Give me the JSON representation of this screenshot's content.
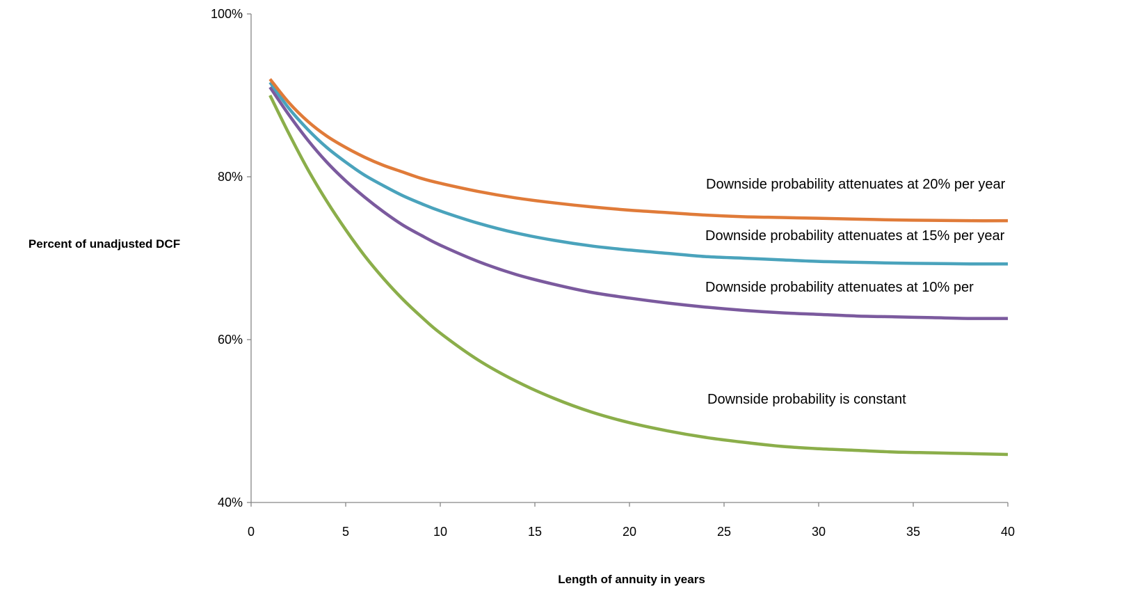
{
  "chart_data": {
    "type": "line",
    "title": "",
    "xlabel": "Length of annuity in years",
    "ylabel": "Percent of unadjusted DCF",
    "xlim": [
      0,
      40
    ],
    "ylim": [
      40,
      100
    ],
    "x_ticks": [
      0,
      5,
      10,
      15,
      20,
      25,
      30,
      35,
      40
    ],
    "x_tick_labels": [
      "0",
      "5",
      "10",
      "15",
      "20",
      "25",
      "30",
      "35",
      "40"
    ],
    "y_ticks": [
      40,
      60,
      80,
      100
    ],
    "y_tick_labels": [
      "40%",
      "60%",
      "80%",
      "100%"
    ],
    "grid": false,
    "legend": "none",
    "x": [
      1,
      2,
      3,
      4,
      5,
      6,
      7,
      8,
      9,
      10,
      12,
      14,
      16,
      18,
      20,
      22,
      24,
      26,
      28,
      30,
      32,
      34,
      36,
      38,
      40
    ],
    "series": [
      {
        "label": "Downside probability attenuates at 20% per year",
        "color": "#E07B39",
        "values": [
          92.0,
          89.1,
          86.8,
          85.0,
          83.6,
          82.4,
          81.4,
          80.6,
          79.8,
          79.2,
          78.2,
          77.4,
          76.8,
          76.3,
          75.9,
          75.6,
          75.3,
          75.1,
          75.0,
          74.9,
          74.8,
          74.7,
          74.65,
          74.6,
          74.6
        ]
      },
      {
        "label": "Downside probability attenuates at 15% per year",
        "color": "#4AA3BC",
        "values": [
          91.6,
          88.4,
          85.8,
          83.6,
          81.8,
          80.2,
          78.9,
          77.7,
          76.7,
          75.8,
          74.3,
          73.1,
          72.2,
          71.5,
          71.0,
          70.6,
          70.2,
          70.0,
          69.8,
          69.6,
          69.5,
          69.4,
          69.35,
          69.3,
          69.3
        ]
      },
      {
        "label": "Downside probability attenuates at 10% per",
        "color": "#7B5A9E",
        "values": [
          91.0,
          87.6,
          84.5,
          81.8,
          79.5,
          77.5,
          75.7,
          74.1,
          72.8,
          71.6,
          69.6,
          68.0,
          66.8,
          65.8,
          65.1,
          64.5,
          64.0,
          63.6,
          63.3,
          63.1,
          62.9,
          62.8,
          62.7,
          62.6,
          62.6
        ]
      },
      {
        "label": "Downside probability is constant",
        "color": "#8BAE4A",
        "values": [
          90.0,
          85.3,
          80.9,
          77.0,
          73.5,
          70.3,
          67.5,
          65.0,
          62.8,
          60.8,
          57.5,
          54.9,
          52.8,
          51.1,
          49.8,
          48.8,
          48.0,
          47.4,
          46.9,
          46.6,
          46.4,
          46.2,
          46.1,
          46.0,
          45.9
        ]
      }
    ]
  }
}
